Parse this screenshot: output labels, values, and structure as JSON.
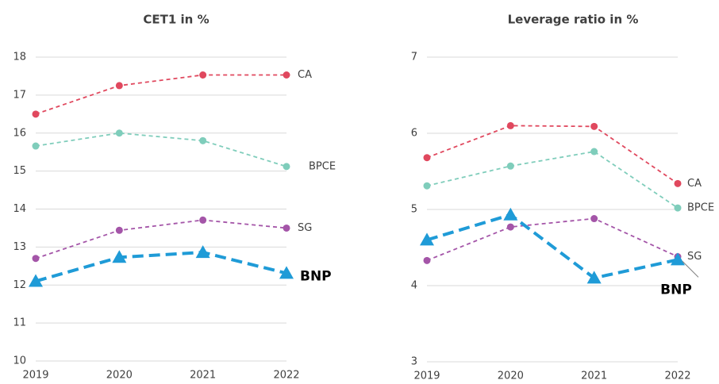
{
  "chart_data": [
    {
      "type": "line",
      "title": "CET1 in %",
      "categories": [
        "2019",
        "2020",
        "2021",
        "2022"
      ],
      "ylim": [
        10,
        18
      ],
      "yticks": [
        10,
        11,
        12,
        13,
        14,
        15,
        16,
        17,
        18
      ],
      "grid": true,
      "series": [
        {
          "name": "CA",
          "color": "#e0485e",
          "values": [
            16.5,
            17.25,
            17.53,
            17.53
          ]
        },
        {
          "name": "BPCE",
          "color": "#7fcdbb",
          "values": [
            15.66,
            16.0,
            15.8,
            15.12
          ]
        },
        {
          "name": "SG",
          "color": "#a455a8",
          "values": [
            12.7,
            13.44,
            13.71,
            13.5
          ]
        },
        {
          "name": "BNP",
          "color": "#1f9bd7",
          "values": [
            12.1,
            12.73,
            12.86,
            12.31
          ]
        }
      ]
    },
    {
      "type": "line",
      "title": "Leverage ratio in %",
      "categories": [
        "2019",
        "2020",
        "2021",
        "2022"
      ],
      "ylim": [
        3,
        7
      ],
      "yticks": [
        3,
        4,
        5,
        6,
        7
      ],
      "grid": true,
      "series": [
        {
          "name": "CA",
          "color": "#e0485e",
          "values": [
            5.68,
            6.1,
            6.09,
            5.34
          ]
        },
        {
          "name": "BPCE",
          "color": "#7fcdbb",
          "values": [
            5.31,
            5.57,
            5.76,
            5.02
          ]
        },
        {
          "name": "SG",
          "color": "#a455a8",
          "values": [
            4.33,
            4.77,
            4.88,
            4.38
          ]
        },
        {
          "name": "BNP",
          "color": "#1f9bd7",
          "values": [
            4.6,
            4.93,
            4.1,
            4.34
          ]
        }
      ]
    }
  ]
}
